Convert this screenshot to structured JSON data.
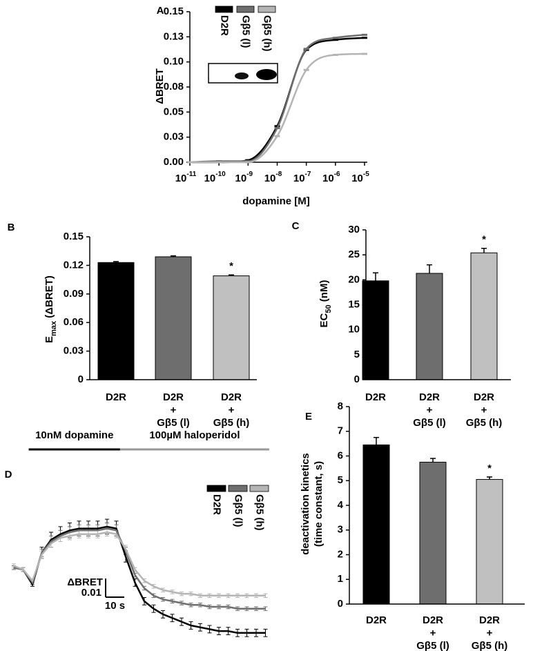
{
  "chart_data": [
    {
      "type": "dose_response",
      "panel": "A",
      "y_label": [
        {
          "text": "ΔBRET"
        }
      ],
      "x_label": "dopamine [M]",
      "x_scale": "log",
      "xlim": [
        1e-11,
        1e-05
      ],
      "xticks": [
        {
          "value": 1e-11,
          "label": "10",
          "exponent": "-11"
        },
        {
          "value": 1e-10,
          "label": "10",
          "exponent": "-10"
        },
        {
          "value": 1e-09,
          "label": "10",
          "exponent": "-9"
        },
        {
          "value": 1e-08,
          "label": "10",
          "exponent": "-8"
        },
        {
          "value": 1e-07,
          "label": "10",
          "exponent": "-7"
        },
        {
          "value": 1e-06,
          "label": "10",
          "exponent": "-6"
        },
        {
          "value": 1e-05,
          "label": "10",
          "exponent": "-5"
        }
      ],
      "ylim": [
        0,
        0.15
      ],
      "yticks": [
        {
          "value": 0,
          "label": "0.00"
        },
        {
          "value": 0.025,
          "label": "0.03"
        },
        0.05,
        {
          "value": 0.075,
          "label": "0.08"
        },
        {
          "value": 0.1,
          "label": "0.10"
        },
        {
          "value": 0.125,
          "label": "0.13"
        },
        0.15
      ],
      "x": [
        1e-11,
        1e-10,
        1e-09,
        1e-08,
        1e-07,
        1e-06,
        1e-05
      ],
      "series": [
        {
          "name": "D2R",
          "color": "#000000",
          "values": [
            0,
            0,
            0.002,
            0.036,
            0.112,
            0.122,
            0.124
          ]
        },
        {
          "name": "Gβ5 (l)",
          "color": "#6e6e6e",
          "values": [
            0,
            0.001,
            0.001,
            0.034,
            0.113,
            0.124,
            0.127
          ]
        },
        {
          "name": "Gβ5 (h)",
          "color": "#b4b4b4",
          "values": [
            0,
            0,
            0,
            0.026,
            0.092,
            0.107,
            0.108
          ]
        }
      ]
    },
    {
      "type": "bar",
      "panel": "B",
      "y_label": [
        {
          "text": "E"
        },
        {
          "text": "max",
          "subscript": true
        },
        {
          "text": " (ΔBRET)"
        }
      ],
      "categories": [
        [
          "D2R"
        ],
        [
          "D2R",
          "+",
          "Gβ5 (l)"
        ],
        [
          "D2R",
          "+",
          "Gβ5 (h)"
        ]
      ],
      "values": [
        0.123,
        0.129,
        0.109
      ],
      "errors": [
        0.001,
        0.001,
        0.001
      ],
      "colors": [
        "#000000",
        "#6e6e6e",
        "#c0c0c0"
      ],
      "significance": [
        null,
        null,
        "*"
      ],
      "ylim": [
        0,
        0.15
      ],
      "yticks": [
        0,
        0.03,
        0.06,
        0.09,
        0.12,
        0.15
      ]
    },
    {
      "type": "bar",
      "panel": "C",
      "y_label": [
        {
          "text": "EC"
        },
        {
          "text": "50",
          "subscript": true
        },
        {
          "text": " (nM)"
        }
      ],
      "categories": [
        [
          "D2R"
        ],
        [
          "D2R",
          "+",
          "Gβ5 (l)"
        ],
        [
          "D2R",
          "+",
          "Gβ5 (h)"
        ]
      ],
      "values": [
        19.8,
        21.3,
        25.4
      ],
      "errors": [
        1.6,
        1.7,
        0.9
      ],
      "colors": [
        "#000000",
        "#6e6e6e",
        "#c0c0c0"
      ],
      "significance": [
        null,
        null,
        "*"
      ],
      "ylim": [
        0,
        30
      ],
      "yticks": [
        0,
        5,
        10,
        15,
        20,
        25,
        30
      ]
    },
    {
      "type": "trace",
      "panel": "D",
      "treatments": [
        {
          "label": "10nM dopamine",
          "start": 8,
          "end": 57,
          "color": "#000000"
        },
        {
          "label": "100µM haloperidol",
          "start": 57,
          "end": 137,
          "color": "#999999"
        }
      ],
      "scale_bar": {
        "y_label": "ΔBRET",
        "y_value": 0.01,
        "x": {
          "value": 10,
          "label": "10 s"
        }
      },
      "x": [
        0,
        5,
        10,
        15,
        20,
        25,
        30,
        35,
        40,
        45,
        50,
        55,
        60,
        65,
        70,
        75,
        80,
        85,
        90,
        95,
        100,
        105,
        110,
        115,
        120,
        125,
        130,
        135
      ],
      "series": [
        {
          "name": "D2R",
          "color": "#000000",
          "values": [
            0.001,
            0.0,
            -0.008,
            0.009,
            0.016,
            0.019,
            0.021,
            0.022,
            0.022,
            0.022,
            0.023,
            0.022,
            0.007,
            -0.007,
            -0.017,
            -0.021,
            -0.024,
            -0.026,
            -0.028,
            -0.03,
            -0.031,
            -0.032,
            -0.033,
            -0.033,
            -0.034,
            -0.034,
            -0.034,
            -0.034
          ],
          "errors": [
            0.001,
            0.001,
            0.001,
            0.003,
            0.004,
            0.004,
            0.004,
            0.004,
            0.004,
            0.004,
            0.004,
            0.004,
            0.003,
            0.002,
            0.002,
            0.002,
            0.002,
            0.002,
            0.002,
            0.002,
            0.002,
            0.002,
            0.002,
            0.002,
            0.002,
            0.002,
            0.002,
            0.002
          ]
        },
        {
          "name": "Gβ5 (l)",
          "color": "#6e6e6e",
          "values": [
            0.001,
            0.0,
            -0.007,
            0.009,
            0.015,
            0.018,
            0.02,
            0.021,
            0.021,
            0.021,
            0.022,
            0.021,
            0.01,
            -0.003,
            -0.01,
            -0.014,
            -0.016,
            -0.017,
            -0.018,
            -0.019,
            -0.019,
            -0.02,
            -0.02,
            -0.02,
            -0.021,
            -0.021,
            -0.021,
            -0.021
          ],
          "errors": [
            0.001,
            0.001,
            0.001,
            0.002,
            0.003,
            0.003,
            0.003,
            0.003,
            0.003,
            0.003,
            0.003,
            0.003,
            0.002,
            0.001,
            0.001,
            0.001,
            0.001,
            0.001,
            0.001,
            0.001,
            0.001,
            0.001,
            0.001,
            0.001,
            0.001,
            0.001,
            0.001,
            0.001
          ]
        },
        {
          "name": "Gβ5 (h)",
          "color": "#b4b4b4",
          "values": [
            0.002,
            0.0,
            -0.006,
            0.008,
            0.014,
            0.017,
            0.018,
            0.019,
            0.019,
            0.019,
            0.02,
            0.019,
            0.011,
            0.0,
            -0.006,
            -0.009,
            -0.011,
            -0.012,
            -0.013,
            -0.013,
            -0.014,
            -0.014,
            -0.014,
            -0.014,
            -0.014,
            -0.014,
            -0.014,
            -0.014
          ],
          "errors": [
            0.001,
            0.001,
            0.001,
            0.002,
            0.002,
            0.002,
            0.002,
            0.002,
            0.002,
            0.002,
            0.002,
            0.002,
            0.002,
            0.001,
            0.001,
            0.001,
            0.001,
            0.001,
            0.001,
            0.001,
            0.001,
            0.001,
            0.001,
            0.001,
            0.001,
            0.001,
            0.001,
            0.001
          ]
        }
      ]
    },
    {
      "type": "bar",
      "panel": "E",
      "y_label": [
        {
          "text": "deactivation kinetics"
        },
        {
          "text": "(time constant, s)",
          "line_break": true
        }
      ],
      "categories": [
        [
          "D2R"
        ],
        [
          "D2R",
          "+",
          "Gβ5 (l)"
        ],
        [
          "D2R",
          "+",
          "Gβ5 (h)"
        ]
      ],
      "values": [
        6.45,
        5.75,
        5.05
      ],
      "errors": [
        0.3,
        0.15,
        0.1
      ],
      "colors": [
        "#000000",
        "#6e6e6e",
        "#c0c0c0"
      ],
      "significance": [
        null,
        null,
        "*"
      ],
      "ylim": [
        0,
        8
      ],
      "yticks": [
        0,
        1,
        2,
        3,
        4,
        5,
        6,
        7,
        8
      ]
    }
  ]
}
